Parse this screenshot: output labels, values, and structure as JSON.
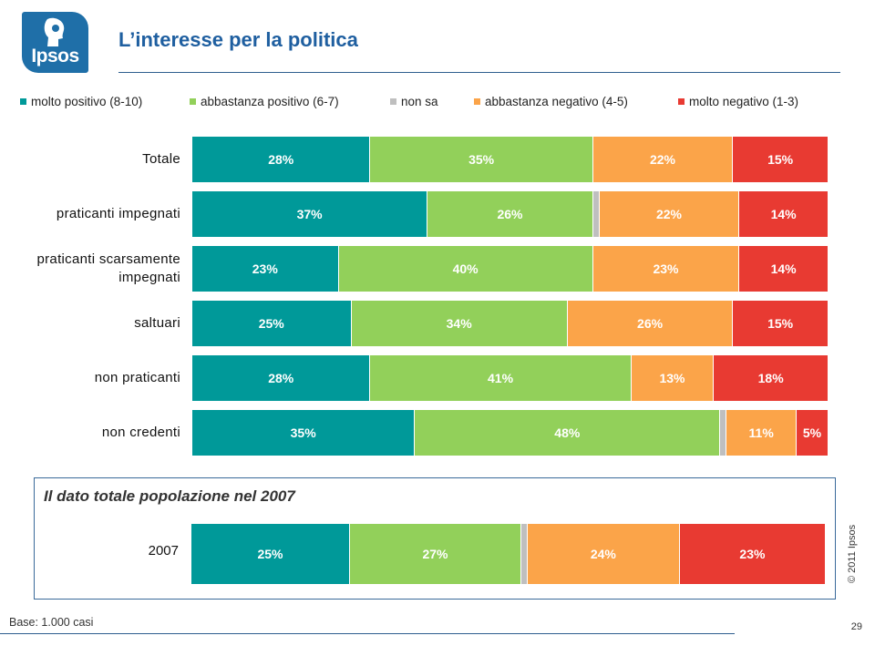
{
  "brand": {
    "logo_text": "Ipsos"
  },
  "header": {
    "title": "L’interesse per la politica"
  },
  "colors": {
    "molto_positivo": "#009999",
    "abbastanza_positivo": "#92d05a",
    "non_sa": "#bfbfbf",
    "abbastanza_negativo": "#fba449",
    "molto_negativo": "#e83a32",
    "title_blue": "#1f5fa0",
    "logo_blue": "#1f6fa8"
  },
  "legend": [
    {
      "label": "molto positivo (8-10)",
      "color": "#009999"
    },
    {
      "label": "abbastanza positivo (6-7)",
      "color": "#92d05a"
    },
    {
      "label": "non sa",
      "color": "#bfbfbf"
    },
    {
      "label": "abbastanza negativo (4-5)",
      "color": "#fba449"
    },
    {
      "label": "molto negativo (1-3)",
      "color": "#e83a32"
    }
  ],
  "chart_data": [
    {
      "type": "bar",
      "orientation": "horizontal",
      "stacked": true,
      "categories": [
        "Totale",
        "praticanti impegnati",
        "praticanti scarsamente impegnati",
        "saltuari",
        "non praticanti",
        "non credenti"
      ],
      "series": [
        {
          "name": "molto positivo (8-10)",
          "values": [
            28,
            37,
            23,
            25,
            28,
            35
          ],
          "labels": [
            "28%",
            "37%",
            "23%",
            "25%",
            "28%",
            "35%"
          ]
        },
        {
          "name": "abbastanza positivo (6-7)",
          "values": [
            35,
            26,
            40,
            34,
            41,
            48
          ],
          "labels": [
            "35%",
            "26%",
            "40%",
            "34%",
            "41%",
            "48%"
          ]
        },
        {
          "name": "non sa",
          "values": [
            0,
            1,
            0,
            0,
            0,
            1
          ],
          "labels": [
            "",
            "",
            "",
            "",
            "",
            ""
          ]
        },
        {
          "name": "abbastanza negativo (4-5)",
          "values": [
            22,
            22,
            23,
            26,
            13,
            11
          ],
          "labels": [
            "22%",
            "22%",
            "23%",
            "26%",
            "13%",
            "11%"
          ]
        },
        {
          "name": "molto negativo (1-3)",
          "values": [
            15,
            14,
            14,
            15,
            18,
            5
          ],
          "labels": [
            "15%",
            "14%",
            "14%",
            "15%",
            "18%",
            "5%"
          ]
        }
      ],
      "xlim": [
        0,
        100
      ],
      "legend_position": "top"
    },
    {
      "type": "bar",
      "orientation": "horizontal",
      "stacked": true,
      "title": "Il dato totale popolazione nel 2007",
      "categories": [
        "2007"
      ],
      "series": [
        {
          "name": "molto positivo (8-10)",
          "values": [
            25
          ],
          "labels": [
            "25%"
          ]
        },
        {
          "name": "abbastanza positivo (6-7)",
          "values": [
            27
          ],
          "labels": [
            "27%"
          ]
        },
        {
          "name": "non sa",
          "values": [
            1
          ],
          "labels": [
            ""
          ]
        },
        {
          "name": "abbastanza negativo (4-5)",
          "values": [
            24
          ],
          "labels": [
            "24%"
          ]
        },
        {
          "name": "molto negativo (1-3)",
          "values": [
            23
          ],
          "labels": [
            "23%"
          ]
        }
      ],
      "xlim": [
        0,
        100
      ]
    }
  ],
  "panel": {
    "title": "Il dato totale popolazione nel 2007"
  },
  "footer": {
    "base_note": "Base: 1.000 casi",
    "copyright": "© 2011 Ipsos",
    "page_number": "29"
  }
}
